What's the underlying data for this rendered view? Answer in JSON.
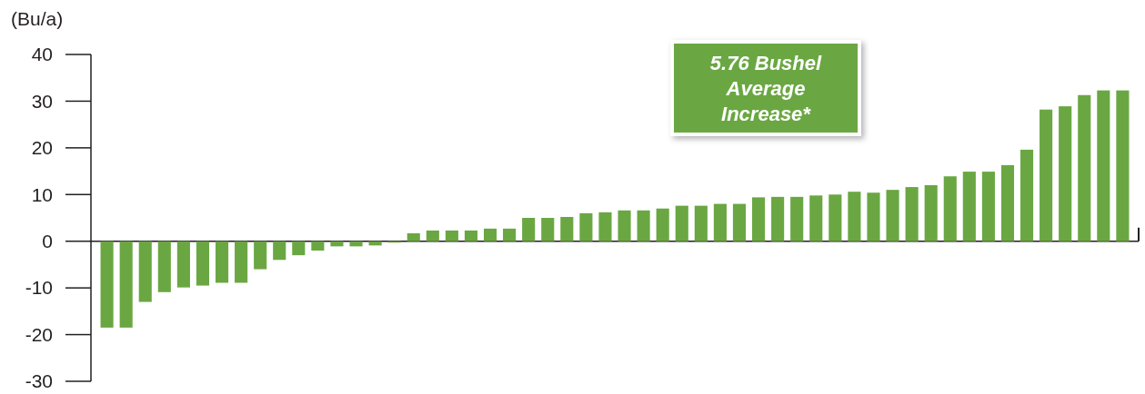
{
  "chart_data": {
    "type": "bar",
    "ylabel": "(Bu/a)",
    "color": "#6aa742",
    "categories": [
      null,
      null,
      null,
      null,
      null,
      null,
      null,
      null,
      null,
      null,
      null,
      null,
      null,
      null,
      null,
      null,
      null,
      null,
      null,
      null,
      null,
      null,
      null,
      null,
      null,
      null,
      null,
      null,
      null,
      null,
      null,
      null,
      null,
      null,
      null,
      null,
      null,
      null,
      null,
      null,
      null,
      null,
      null,
      null,
      null,
      null,
      null,
      null,
      null,
      null,
      null,
      null,
      null,
      null
    ],
    "values": [
      -18.5,
      -18.5,
      -13,
      -10.9,
      -9.9,
      -9.5,
      -8.9,
      -8.9,
      -6,
      -4,
      -3,
      -2,
      -1.1,
      -1.1,
      -0.9,
      -0.3,
      1.7,
      2.3,
      2.3,
      2.3,
      2.7,
      2.7,
      5.0,
      5.0,
      5.2,
      6.0,
      6.2,
      6.6,
      6.6,
      7.0,
      7.6,
      7.6,
      8.0,
      8.0,
      9.4,
      9.5,
      9.5,
      9.8,
      10.0,
      10.6,
      10.4,
      11.0,
      11.6,
      12.0,
      13.9,
      14.9,
      14.9,
      16.3,
      19.6,
      28.2,
      28.9,
      31.3,
      32.3,
      32.3
    ],
    "ylim": [
      -30,
      40
    ],
    "yticks": [
      -30,
      -20,
      -10,
      0,
      10,
      20,
      30,
      40
    ],
    "annotations": [
      "5.76 Bushel Average Increase*"
    ]
  }
}
